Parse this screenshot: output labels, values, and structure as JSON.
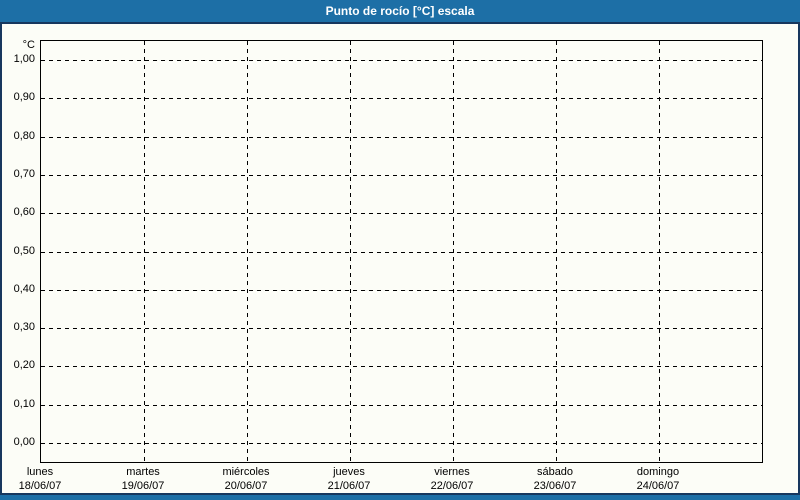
{
  "window": {
    "title": "Punto de rocío [°C] escala"
  },
  "colors": {
    "titlebar_bg": "#1d6fa6",
    "titlebar_text": "#ffffff",
    "frame_border": "#17375e",
    "panel_bg": "#fcfdf7",
    "plot_border": "#000000",
    "grid_color": "#000000",
    "label_color": "#000000"
  },
  "chart_data": {
    "type": "line",
    "title": "Punto de rocío [°C] escala",
    "xlabel": "",
    "ylabel": "°C",
    "ylim": [
      0,
      1
    ],
    "grid": "dashed",
    "legend": "none",
    "y_ticks": [
      {
        "value": 0.0,
        "label": "0,00"
      },
      {
        "value": 0.1,
        "label": "0,10"
      },
      {
        "value": 0.2,
        "label": "0,20"
      },
      {
        "value": 0.3,
        "label": "0,30"
      },
      {
        "value": 0.4,
        "label": "0,40"
      },
      {
        "value": 0.5,
        "label": "0,50"
      },
      {
        "value": 0.6,
        "label": "0,60"
      },
      {
        "value": 0.7,
        "label": "0,70"
      },
      {
        "value": 0.8,
        "label": "0,80"
      },
      {
        "value": 0.9,
        "label": "0,90"
      },
      {
        "value": 1.0,
        "label": "1,00"
      }
    ],
    "x_ticks": [
      {
        "day": "lunes",
        "date": "18/06/07"
      },
      {
        "day": "martes",
        "date": "19/06/07"
      },
      {
        "day": "miércoles",
        "date": "20/06/07"
      },
      {
        "day": "jueves",
        "date": "21/06/07"
      },
      {
        "day": "viernes",
        "date": "22/06/07"
      },
      {
        "day": "sábado",
        "date": "23/06/07"
      },
      {
        "day": "domingo",
        "date": "24/06/07"
      }
    ],
    "series": []
  }
}
